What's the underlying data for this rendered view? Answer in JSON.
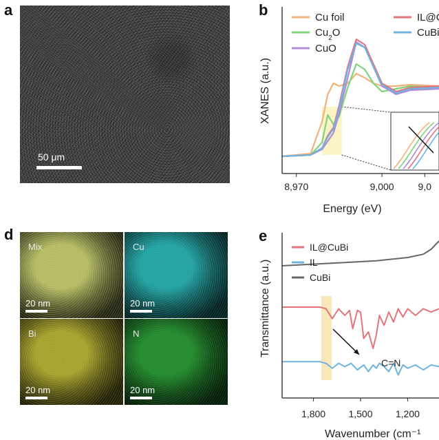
{
  "panels": {
    "a": {
      "letter": "a",
      "scale_bar": "50 μm"
    },
    "b": {
      "letter": "b"
    },
    "d": {
      "letter": "d",
      "tiles": [
        {
          "label": "Mix",
          "scale_bar": "20 nm",
          "color": "#d9e07a"
        },
        {
          "label": "Cu",
          "scale_bar": "20 nm",
          "color": "#2fc4c4"
        },
        {
          "label": "Bi",
          "scale_bar": "20 nm",
          "color": "#c9c23a"
        },
        {
          "label": "N",
          "scale_bar": "20 nm",
          "color": "#2ea83a"
        }
      ]
    },
    "e": {
      "letter": "e"
    }
  },
  "chart_data": [
    {
      "type": "line",
      "panel": "b",
      "xlabel": "Energy (eV)",
      "ylabel": "XANES (a.u.)",
      "xlim": [
        8965,
        9020
      ],
      "x_ticks": [
        "8,970",
        "9,000",
        "9,0"
      ],
      "legend": [
        {
          "name": "Cu foil",
          "color": "#f2b27a"
        },
        {
          "name": "Cu2O",
          "color": "#7dd47a"
        },
        {
          "name": "CuO",
          "color": "#b48ad8"
        },
        {
          "name": "IL@C",
          "color": "#e5737a"
        },
        {
          "name": "CuBi",
          "color": "#6fb4de"
        }
      ],
      "series": [
        {
          "name": "Cu foil",
          "color": "#f2b27a",
          "x": [
            8965,
            8975,
            8979,
            8981,
            8983,
            8985,
            8988,
            8991,
            8994,
            8997,
            9000,
            9005,
            9010,
            9020
          ],
          "y": [
            0.05,
            0.07,
            0.3,
            0.5,
            0.58,
            0.56,
            0.58,
            0.65,
            0.62,
            0.58,
            0.56,
            0.56,
            0.57,
            0.56
          ]
        },
        {
          "name": "Cu2O",
          "color": "#7dd47a",
          "x": [
            8965,
            8975,
            8979,
            8981,
            8983,
            8985,
            8988,
            8991,
            8994,
            8997,
            9000,
            9005,
            9010,
            9020
          ],
          "y": [
            0.05,
            0.06,
            0.15,
            0.35,
            0.28,
            0.34,
            0.55,
            0.72,
            0.68,
            0.58,
            0.52,
            0.54,
            0.56,
            0.55
          ]
        },
        {
          "name": "CuO",
          "color": "#b48ad8",
          "x": [
            8965,
            8975,
            8979,
            8981,
            8983,
            8985,
            8988,
            8991,
            8994,
            8997,
            9000,
            9005,
            9010,
            9020
          ],
          "y": [
            0.05,
            0.06,
            0.1,
            0.16,
            0.22,
            0.36,
            0.62,
            0.88,
            0.84,
            0.7,
            0.56,
            0.5,
            0.53,
            0.54
          ]
        },
        {
          "name": "IL@C",
          "color": "#e5737a",
          "x": [
            8965,
            8975,
            8979,
            8981,
            8983,
            8985,
            8988,
            8991,
            8994,
            8997,
            9000,
            9005,
            9010,
            9020
          ],
          "y": [
            0.05,
            0.06,
            0.11,
            0.2,
            0.26,
            0.42,
            0.7,
            0.9,
            0.86,
            0.72,
            0.58,
            0.52,
            0.55,
            0.56
          ]
        },
        {
          "name": "CuBi",
          "color": "#6fb4de",
          "x": [
            8965,
            8975,
            8979,
            8981,
            8983,
            8985,
            8988,
            8991,
            8994,
            8997,
            9000,
            9005,
            9010,
            9020
          ],
          "y": [
            0.05,
            0.06,
            0.11,
            0.19,
            0.25,
            0.4,
            0.68,
            0.87,
            0.84,
            0.7,
            0.57,
            0.51,
            0.54,
            0.55
          ]
        }
      ]
    },
    {
      "type": "line",
      "panel": "e",
      "xlabel": "Wavenumber (cm⁻¹",
      "ylabel": "Transmittance (a.u.)",
      "xlim": [
        2000,
        1000
      ],
      "x_ticks": [
        "1,800",
        "1,500",
        "1,200",
        "9"
      ],
      "annotation": "C=N",
      "legend": [
        {
          "name": "IL@CuBi",
          "color": "#e5737a"
        },
        {
          "name": "IL",
          "color": "#6fb4de"
        },
        {
          "name": "CuBi",
          "color": "#666666"
        }
      ],
      "series": [
        {
          "name": "CuBi",
          "color": "#666666",
          "x": [
            2000,
            1800,
            1600,
            1400,
            1200,
            1100,
            1050,
            1000
          ],
          "y": [
            0.8,
            0.81,
            0.82,
            0.83,
            0.85,
            0.87,
            0.9,
            0.95
          ]
        },
        {
          "name": "IL@CuBi",
          "color": "#e5737a",
          "x": [
            2000,
            1800,
            1760,
            1720,
            1680,
            1640,
            1600,
            1570,
            1550,
            1520,
            1500,
            1480,
            1450,
            1420,
            1400,
            1380,
            1350,
            1320,
            1290,
            1260,
            1230,
            1200,
            1150,
            1100,
            1050,
            1000
          ],
          "y": [
            0.55,
            0.55,
            0.55,
            0.54,
            0.48,
            0.54,
            0.5,
            0.53,
            0.42,
            0.53,
            0.52,
            0.36,
            0.4,
            0.3,
            0.38,
            0.5,
            0.44,
            0.52,
            0.46,
            0.54,
            0.49,
            0.54,
            0.5,
            0.54,
            0.52,
            0.54
          ]
        },
        {
          "name": "IL",
          "color": "#6fb4de",
          "x": [
            2000,
            1800,
            1760,
            1720,
            1680,
            1640,
            1600,
            1560,
            1520,
            1480,
            1450,
            1420,
            1400,
            1380,
            1350,
            1320,
            1290,
            1260,
            1230,
            1200,
            1150,
            1100,
            1050,
            1000
          ],
          "y": [
            0.22,
            0.22,
            0.22,
            0.21,
            0.18,
            0.21,
            0.19,
            0.21,
            0.17,
            0.2,
            0.16,
            0.2,
            0.18,
            0.21,
            0.19,
            0.16,
            0.21,
            0.14,
            0.2,
            0.18,
            0.2,
            0.17,
            0.2,
            0.19
          ]
        }
      ]
    }
  ]
}
